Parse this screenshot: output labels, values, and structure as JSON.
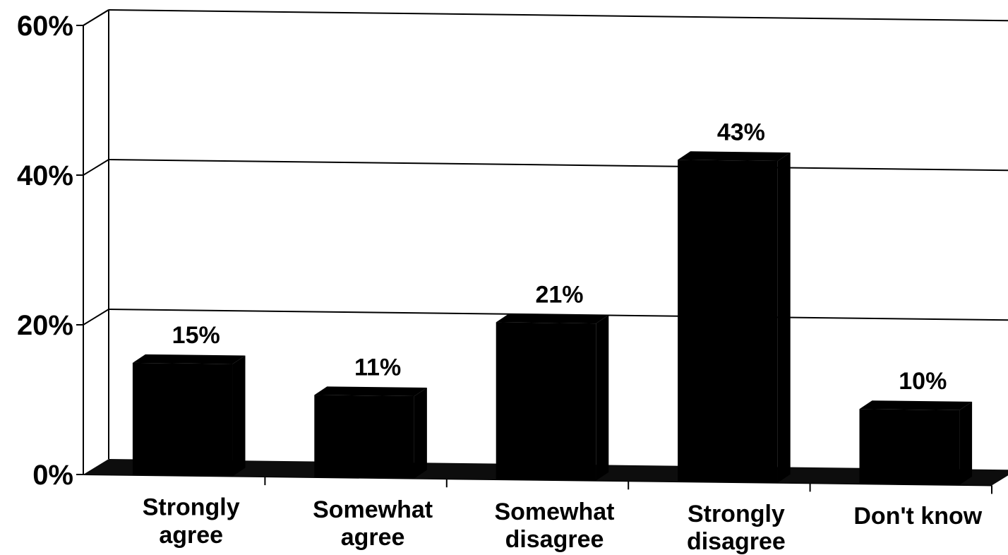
{
  "chart_data": {
    "type": "bar",
    "categories": [
      [
        "Strongly",
        "agree"
      ],
      [
        "Somewhat",
        "agree"
      ],
      [
        "Somewhat",
        "disagree"
      ],
      [
        "Strongly",
        "disagree"
      ],
      [
        "Don't know"
      ]
    ],
    "values": [
      15,
      11,
      21,
      43,
      10
    ],
    "data_labels": [
      "15%",
      "11%",
      "21%",
      "43%",
      "10%"
    ],
    "y_ticks": [
      {
        "value": 0,
        "label": "0%"
      },
      {
        "value": 20,
        "label": "20%"
      },
      {
        "value": 40,
        "label": "40%"
      },
      {
        "value": 60,
        "label": "60%"
      }
    ],
    "ylim": [
      0,
      60
    ],
    "grid": true,
    "three_d": true,
    "bar_color": "#000000",
    "grid_color": "#000000",
    "title": "",
    "xlabel": "",
    "ylabel": ""
  }
}
